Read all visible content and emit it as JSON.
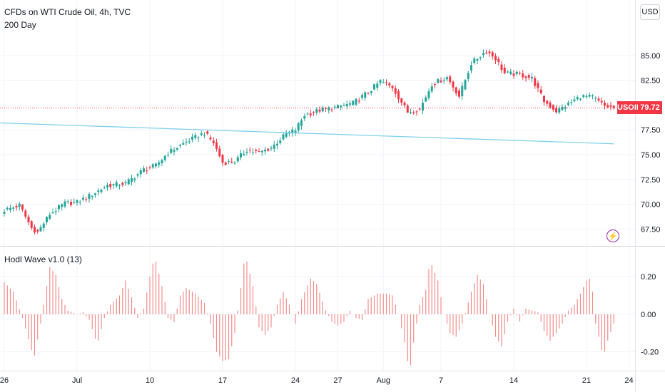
{
  "header": {
    "symbol_title": "CFDs on WTI Crude Oil, 4h, TVC",
    "ma_label": "200 Day",
    "indicator_label": "Hodl Wave v1.0 (13)",
    "currency": "USD",
    "ticker": "USOIL",
    "last_price": "79.72"
  },
  "colors": {
    "up": "#26a69a",
    "down": "#f23645",
    "ma": "#7fd0ea",
    "osc": "#f28b8b",
    "price_line": "#f23645",
    "alert": "#9c27b0"
  },
  "icons": {
    "alert": "lightning-icon"
  },
  "chart_data": [
    {
      "type": "candlestick",
      "title": "CFDs on WTI Crude Oil, 4h, TVC",
      "ylim": [
        65.8,
        90.6
      ],
      "yticks": [
        67.5,
        70,
        72.5,
        75,
        77.5,
        80,
        82.5,
        85
      ],
      "ytick_labels": [
        "67.50",
        "70.00",
        "72.50",
        "75.00",
        "77.50",
        "80.00",
        "82.50",
        "85.00"
      ],
      "x_labels": [
        {
          "label": "26",
          "bar": 0
        },
        {
          "label": "Jul",
          "bar": 24
        },
        {
          "label": "10",
          "bar": 48
        },
        {
          "label": "17",
          "bar": 72
        },
        {
          "label": "24",
          "bar": 96
        },
        {
          "label": "27",
          "bar": 110
        },
        {
          "label": "Aug",
          "bar": 125
        },
        {
          "label": "7",
          "bar": 144
        },
        {
          "label": "14",
          "bar": 168
        },
        {
          "label": "21",
          "bar": 192
        },
        {
          "label": "24",
          "bar": 206
        }
      ],
      "close_anchors": [
        [
          0,
          69.4
        ],
        [
          5,
          69.9
        ],
        [
          9,
          67.6
        ],
        [
          11,
          67.2
        ],
        [
          15,
          69.0
        ],
        [
          20,
          70.1
        ],
        [
          24,
          70.2
        ],
        [
          29,
          71.0
        ],
        [
          34,
          71.9
        ],
        [
          40,
          72.1
        ],
        [
          46,
          73.5
        ],
        [
          50,
          73.9
        ],
        [
          54,
          75.2
        ],
        [
          60,
          76.3
        ],
        [
          66,
          77.2
        ],
        [
          69,
          76.2
        ],
        [
          72,
          74.2
        ],
        [
          76,
          74.3
        ],
        [
          80,
          75.5
        ],
        [
          84,
          75.2
        ],
        [
          88,
          75.7
        ],
        [
          93,
          77.1
        ],
        [
          96,
          77.5
        ],
        [
          99,
          79.0
        ],
        [
          104,
          79.5
        ],
        [
          110,
          79.8
        ],
        [
          115,
          80.2
        ],
        [
          120,
          81.3
        ],
        [
          124,
          82.4
        ],
        [
          128,
          81.8
        ],
        [
          133,
          79.3
        ],
        [
          137,
          79.6
        ],
        [
          141,
          82.1
        ],
        [
          146,
          82.8
        ],
        [
          150,
          80.9
        ],
        [
          154,
          84.2
        ],
        [
          159,
          85.5
        ],
        [
          162,
          84.7
        ],
        [
          165,
          83.2
        ],
        [
          170,
          83.1
        ],
        [
          174,
          82.7
        ],
        [
          178,
          80.4
        ],
        [
          182,
          79.4
        ],
        [
          186,
          80.1
        ],
        [
          190,
          80.9
        ],
        [
          194,
          80.8
        ],
        [
          198,
          79.9
        ],
        [
          201,
          79.72
        ]
      ],
      "series": [
        {
          "name": "200 Day",
          "x": [
            0,
            201
          ],
          "values": [
            78.2,
            76.1
          ]
        }
      ],
      "current_price": 79.72
    },
    {
      "type": "bar",
      "title": "Hodl Wave v1.0 (13)",
      "ylim": [
        -0.3,
        0.36
      ],
      "yticks": [
        0.2,
        0.0,
        -0.2
      ],
      "ytick_labels": [
        "0.20",
        "0.00",
        "-0.20"
      ],
      "anchors": [
        [
          0,
          0.17
        ],
        [
          3,
          0.12
        ],
        [
          6,
          -0.02
        ],
        [
          9,
          -0.19
        ],
        [
          10,
          -0.22
        ],
        [
          12,
          -0.05
        ],
        [
          14,
          0.15
        ],
        [
          15,
          0.25
        ],
        [
          17,
          0.21
        ],
        [
          19,
          0.08
        ],
        [
          21,
          0.02
        ],
        [
          24,
          0.0
        ],
        [
          26,
          0.01
        ],
        [
          28,
          -0.03
        ],
        [
          30,
          -0.13
        ],
        [
          31,
          -0.14
        ],
        [
          33,
          -0.02
        ],
        [
          35,
          0.05
        ],
        [
          38,
          0.1
        ],
        [
          40,
          0.18
        ],
        [
          42,
          0.09
        ],
        [
          44,
          -0.02
        ],
        [
          46,
          0.03
        ],
        [
          48,
          0.2
        ],
        [
          49,
          0.27
        ],
        [
          50,
          0.28
        ],
        [
          52,
          0.15
        ],
        [
          54,
          -0.02
        ],
        [
          56,
          -0.04
        ],
        [
          58,
          0.1
        ],
        [
          60,
          0.14
        ],
        [
          63,
          0.11
        ],
        [
          66,
          0.06
        ],
        [
          68,
          -0.05
        ],
        [
          70,
          -0.2
        ],
        [
          72,
          -0.25
        ],
        [
          74,
          -0.24
        ],
        [
          76,
          -0.1
        ],
        [
          78,
          0.14
        ],
        [
          79,
          0.27
        ],
        [
          80,
          0.28
        ],
        [
          82,
          0.15
        ],
        [
          84,
          -0.07
        ],
        [
          86,
          -0.11
        ],
        [
          88,
          -0.07
        ],
        [
          90,
          0.05
        ],
        [
          92,
          0.12
        ],
        [
          94,
          0.05
        ],
        [
          96,
          -0.05
        ],
        [
          98,
          0.08
        ],
        [
          101,
          0.19
        ],
        [
          103,
          0.16
        ],
        [
          106,
          0.02
        ],
        [
          108,
          -0.04
        ],
        [
          110,
          -0.06
        ],
        [
          112,
          -0.04
        ],
        [
          114,
          0.02
        ],
        [
          116,
          -0.02
        ],
        [
          118,
          -0.03
        ],
        [
          120,
          0.08
        ],
        [
          123,
          0.11
        ],
        [
          126,
          0.11
        ],
        [
          128,
          0.1
        ],
        [
          130,
          0.0
        ],
        [
          132,
          -0.15
        ],
        [
          133,
          -0.25
        ],
        [
          134,
          -0.27
        ],
        [
          135,
          -0.15
        ],
        [
          137,
          0.05
        ],
        [
          139,
          0.13
        ],
        [
          140,
          0.24
        ],
        [
          141,
          0.26
        ],
        [
          143,
          0.18
        ],
        [
          145,
          0.0
        ],
        [
          147,
          -0.1
        ],
        [
          149,
          -0.12
        ],
        [
          151,
          -0.05
        ],
        [
          154,
          0.12
        ],
        [
          156,
          0.21
        ],
        [
          158,
          0.16
        ],
        [
          160,
          0.0
        ],
        [
          162,
          -0.12
        ],
        [
          164,
          -0.17
        ],
        [
          166,
          -0.04
        ],
        [
          168,
          0.03
        ],
        [
          170,
          -0.04
        ],
        [
          172,
          0.03
        ],
        [
          174,
          0.02
        ],
        [
          176,
          0.01
        ],
        [
          178,
          -0.09
        ],
        [
          180,
          -0.14
        ],
        [
          182,
          -0.1
        ],
        [
          184,
          -0.05
        ],
        [
          186,
          0.02
        ],
        [
          188,
          0.05
        ],
        [
          190,
          0.11
        ],
        [
          192,
          0.18
        ],
        [
          193,
          0.19
        ],
        [
          194,
          0.12
        ],
        [
          195,
          -0.05
        ],
        [
          197,
          -0.19
        ],
        [
          198,
          -0.2
        ],
        [
          199,
          -0.14
        ],
        [
          201,
          -0.05
        ]
      ]
    }
  ]
}
